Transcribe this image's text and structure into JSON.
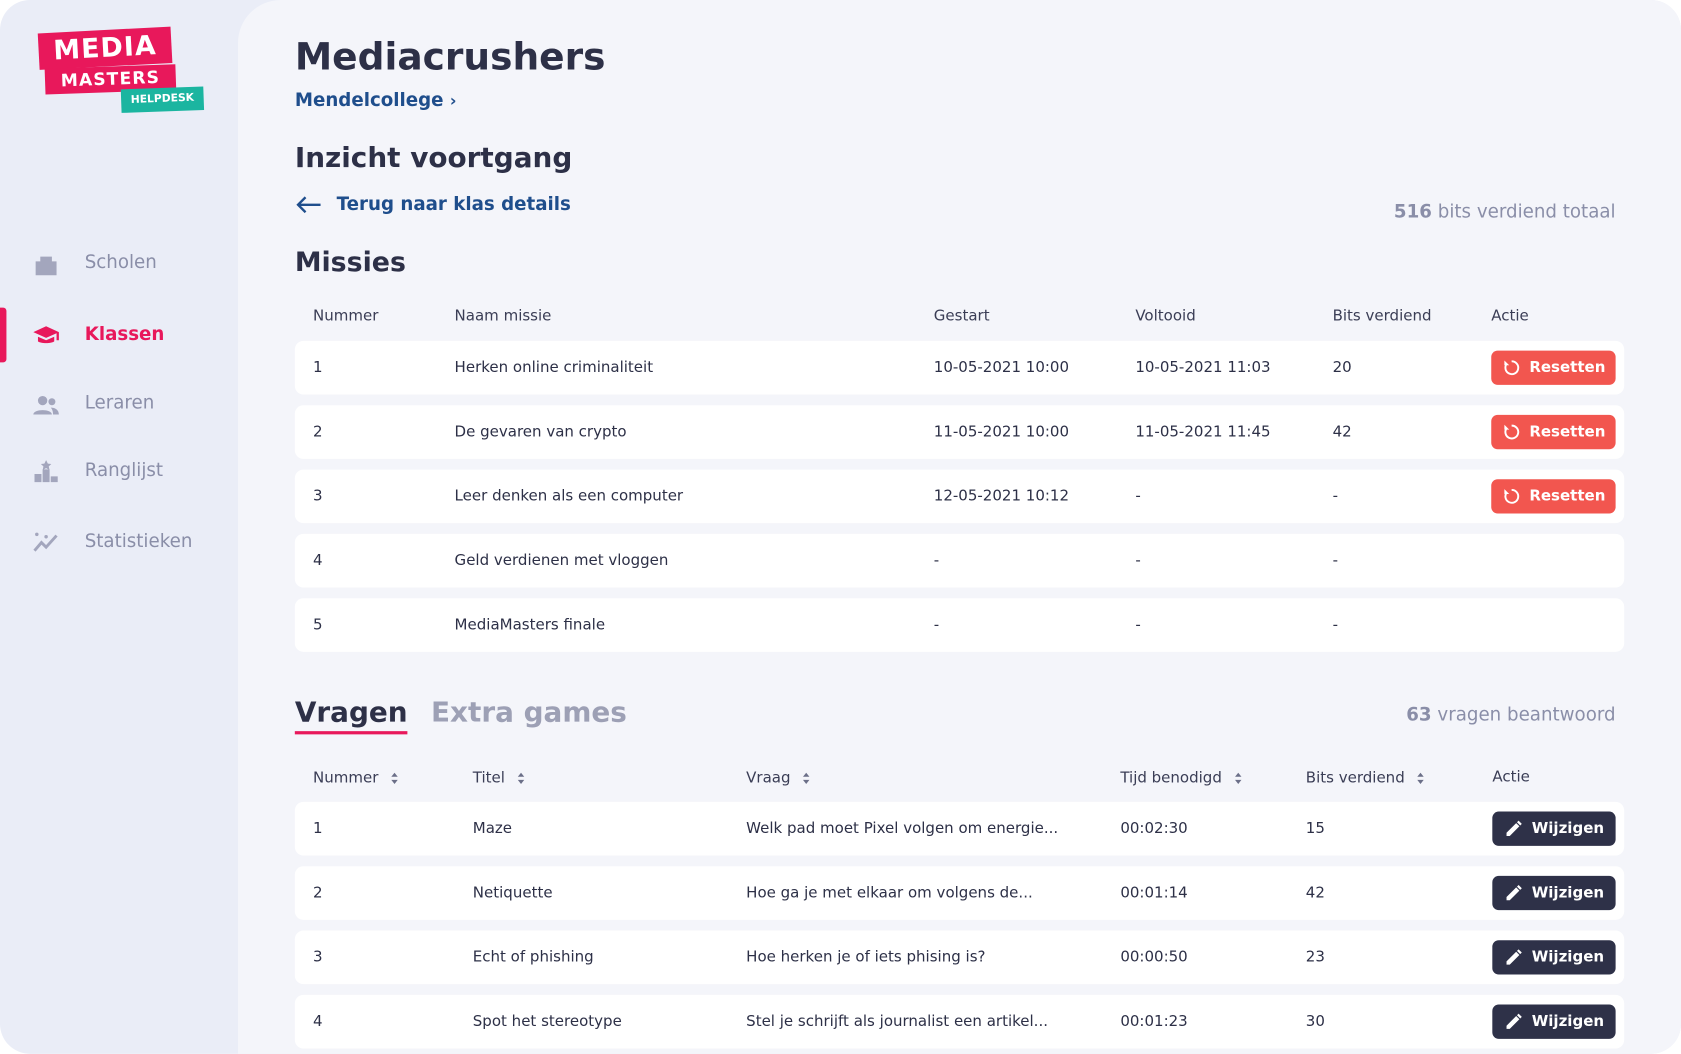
{
  "logo": {
    "line1": "MEDIA",
    "line2": "MASTERS",
    "badge": "HELPDESK"
  },
  "nav": [
    "Scholen",
    "Klassen",
    "Leraren",
    "Ranglijst",
    "Statistieken"
  ],
  "header": {
    "title": "Mediacrushers",
    "breadcrumb": "Mendelcollege"
  },
  "section_title": "Inzicht voortgang",
  "back_link": "Terug naar klas details",
  "total_bits": {
    "value": "516",
    "label": "bits verdiend totaal"
  },
  "missions": {
    "title": "Missies",
    "columns": [
      "Nummer",
      "Naam missie",
      "Gestart",
      "Voltooid",
      "Bits verdiend",
      "Actie"
    ],
    "rows": [
      [
        "1",
        "Herken online criminaliteit",
        "10-05-2021 10:00",
        "10-05-2021 11:03",
        "20",
        "Resetten"
      ],
      [
        "2",
        "De gevaren van crypto",
        "11-05-2021 10:00",
        "11-05-2021 11:45",
        "42",
        "Resetten"
      ],
      [
        "3",
        "Leer denken als een computer",
        "12-05-2021 10:12",
        "-",
        "-",
        "Resetten"
      ],
      [
        "4",
        "Geld verdienen met vloggen",
        "-",
        "-",
        "-"
      ],
      [
        "5",
        "MediaMasters finale",
        "-",
        "-",
        "-"
      ]
    ]
  },
  "tabs": [
    "Vragen",
    "Extra games"
  ],
  "answered": {
    "value": "63",
    "label": "vragen beantwoord"
  },
  "questions": {
    "columns": [
      "Nummer",
      "Titel",
      "Vraag",
      "Tijd benodigd",
      "Bits verdiend",
      "Actie"
    ],
    "rows": [
      [
        "1",
        "Maze",
        "Welk pad moet Pixel volgen om energie...",
        "00:02:30",
        "15",
        "Wijzigen"
      ],
      [
        "2",
        "Netiquette",
        "Hoe ga je met elkaar om volgens de...",
        "00:01:14",
        "42",
        "Wijzigen"
      ],
      [
        "3",
        "Echt of phishing",
        "Hoe herken je of iets phising is?",
        "00:00:50",
        "23",
        "Wijzigen"
      ],
      [
        "4",
        "Spot het stereotype",
        "Stel je schrijft als journalist een artikel...",
        "00:01:23",
        "30",
        "Wijzigen"
      ]
    ]
  }
}
